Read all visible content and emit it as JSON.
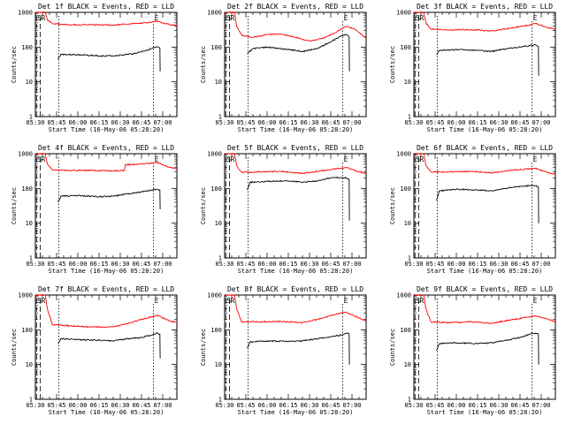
{
  "shared": {
    "ylabel": "Counts/sec",
    "xlabel": "Start Time (16-May-06 05:28:20)",
    "x_tick_labels": [
      "05:30",
      "05:45",
      "06:00",
      "06:15",
      "06:30",
      "06:45",
      "07:00"
    ],
    "y_tick_labels": [
      "1",
      "10",
      "100",
      "1000"
    ],
    "marker_s_label": "S",
    "marker_e_label": "E",
    "marker_r_label": "R",
    "series_colors": {
      "events": "#000000",
      "lld": "#ff0000"
    }
  },
  "chart_data": [
    {
      "type": "line",
      "title": "Det 1f BLACK = Events, RED = LLD",
      "x_unit": "minutes after 05:30",
      "xlim": [
        0,
        100
      ],
      "ylim": [
        1,
        1000
      ],
      "yscale": "log",
      "markers": {
        "S": [
          0.8,
          3.4,
          16.5
        ],
        "E": [
          83.5
        ]
      },
      "series": [
        {
          "name": "Events",
          "points": [
            [
              16,
              45
            ],
            [
              18,
              62
            ],
            [
              30,
              60
            ],
            [
              45,
              56
            ],
            [
              55,
              56
            ],
            [
              70,
              65
            ],
            [
              80,
              85
            ],
            [
              86,
              100
            ],
            [
              88,
              95
            ],
            [
              88.2,
              20
            ]
          ]
        },
        {
          "name": "LLD",
          "points": [
            [
              0,
              950
            ],
            [
              3,
              1000
            ],
            [
              7,
              1000
            ],
            [
              8.5,
              600
            ],
            [
              12,
              470
            ],
            [
              25,
              440
            ],
            [
              40,
              440
            ],
            [
              55,
              430
            ],
            [
              70,
              470
            ],
            [
              82,
              520
            ],
            [
              86,
              560
            ],
            [
              95,
              440
            ],
            [
              100,
              420
            ]
          ]
        }
      ]
    },
    {
      "type": "line",
      "title": "Det 2f BLACK = Events, RED = LLD",
      "x_unit": "minutes after 05:30",
      "xlim": [
        0,
        100
      ],
      "ylim": [
        1,
        1000
      ],
      "yscale": "log",
      "markers": {
        "S": [
          0.8,
          3.4,
          16.5
        ],
        "E": [
          83.5
        ]
      },
      "series": [
        {
          "name": "Events",
          "points": [
            [
              16,
              65
            ],
            [
              20,
              90
            ],
            [
              30,
              100
            ],
            [
              45,
              85
            ],
            [
              55,
              75
            ],
            [
              65,
              90
            ],
            [
              75,
              140
            ],
            [
              82,
              210
            ],
            [
              86,
              230
            ],
            [
              88,
              200
            ],
            [
              88.2,
              20
            ]
          ]
        },
        {
          "name": "LLD",
          "points": [
            [
              0,
              950
            ],
            [
              3,
              1000
            ],
            [
              7,
              1000
            ],
            [
              8.5,
              400
            ],
            [
              12,
              220
            ],
            [
              20,
              190
            ],
            [
              30,
              230
            ],
            [
              40,
              240
            ],
            [
              50,
              190
            ],
            [
              60,
              150
            ],
            [
              70,
              180
            ],
            [
              80,
              290
            ],
            [
              86,
              400
            ],
            [
              92,
              330
            ],
            [
              100,
              180
            ]
          ]
        }
      ]
    },
    {
      "type": "line",
      "title": "Det 3f BLACK = Events, RED = LLD",
      "x_unit": "minutes after 05:30",
      "xlim": [
        0,
        100
      ],
      "ylim": [
        1,
        1000
      ],
      "yscale": "log",
      "markers": {
        "S": [
          0.8,
          3.4,
          16.5
        ],
        "E": [
          83.5
        ]
      },
      "series": [
        {
          "name": "Events",
          "points": [
            [
              16,
              60
            ],
            [
              18,
              80
            ],
            [
              30,
              85
            ],
            [
              45,
              80
            ],
            [
              55,
              75
            ],
            [
              65,
              90
            ],
            [
              75,
              100
            ],
            [
              82,
              110
            ],
            [
              86,
              115
            ],
            [
              88,
              105
            ],
            [
              88.2,
              15
            ]
          ]
        },
        {
          "name": "LLD",
          "points": [
            [
              0,
              950
            ],
            [
              3,
              1000
            ],
            [
              7,
              1000
            ],
            [
              8.5,
              500
            ],
            [
              12,
              330
            ],
            [
              25,
              310
            ],
            [
              40,
              320
            ],
            [
              55,
              290
            ],
            [
              68,
              350
            ],
            [
              80,
              420
            ],
            [
              86,
              480
            ],
            [
              95,
              360
            ],
            [
              100,
              330
            ]
          ]
        }
      ]
    },
    {
      "type": "line",
      "title": "Det 4f BLACK = Events, RED = LLD",
      "x_unit": "minutes after 05:30",
      "xlim": [
        0,
        100
      ],
      "ylim": [
        1,
        1000
      ],
      "yscale": "log",
      "markers": {
        "S": [
          0.8,
          3.4,
          16.5
        ],
        "E": [
          83.5
        ]
      },
      "series": [
        {
          "name": "Events",
          "points": [
            [
              16,
              40
            ],
            [
              18,
              60
            ],
            [
              30,
              62
            ],
            [
              45,
              58
            ],
            [
              55,
              60
            ],
            [
              65,
              70
            ],
            [
              72,
              75
            ],
            [
              78,
              85
            ],
            [
              86,
              95
            ],
            [
              88,
              90
            ],
            [
              88.2,
              25
            ]
          ]
        },
        {
          "name": "LLD",
          "points": [
            [
              0,
              950
            ],
            [
              3,
              1000
            ],
            [
              7,
              1000
            ],
            [
              8.5,
              500
            ],
            [
              12,
              340
            ],
            [
              25,
              330
            ],
            [
              40,
              330
            ],
            [
              55,
              320
            ],
            [
              63,
              330
            ],
            [
              63.5,
              480
            ],
            [
              75,
              500
            ],
            [
              86,
              560
            ],
            [
              95,
              400
            ],
            [
              100,
              370
            ]
          ]
        }
      ]
    },
    {
      "type": "line",
      "title": "Det 5f BLACK = Events, RED = LLD",
      "x_unit": "minutes after 05:30",
      "xlim": [
        0,
        100
      ],
      "ylim": [
        1,
        1000
      ],
      "yscale": "log",
      "markers": {
        "S": [
          0.8,
          3.4,
          16.5
        ],
        "E": [
          83.5
        ]
      },
      "series": [
        {
          "name": "Events",
          "points": [
            [
              16,
              90
            ],
            [
              18,
              150
            ],
            [
              30,
              160
            ],
            [
              45,
              165
            ],
            [
              55,
              150
            ],
            [
              65,
              165
            ],
            [
              75,
              200
            ],
            [
              82,
              210
            ],
            [
              86,
              200
            ],
            [
              88,
              180
            ],
            [
              88.2,
              12
            ]
          ]
        },
        {
          "name": "LLD",
          "points": [
            [
              0,
              950
            ],
            [
              3,
              1000
            ],
            [
              7,
              1000
            ],
            [
              8.5,
              450
            ],
            [
              12,
              290
            ],
            [
              25,
              300
            ],
            [
              40,
              310
            ],
            [
              55,
              270
            ],
            [
              68,
              320
            ],
            [
              80,
              370
            ],
            [
              86,
              400
            ],
            [
              95,
              300
            ],
            [
              100,
              270
            ]
          ]
        }
      ]
    },
    {
      "type": "line",
      "title": "Det 6f BLACK = Events, RED = LLD",
      "x_unit": "minutes after 05:30",
      "xlim": [
        0,
        100
      ],
      "ylim": [
        1,
        1000
      ],
      "yscale": "log",
      "markers": {
        "S": [
          0.8,
          3.4,
          16.5
        ],
        "E": [
          83.5
        ]
      },
      "series": [
        {
          "name": "Events",
          "points": [
            [
              16,
              45
            ],
            [
              18,
              85
            ],
            [
              30,
              95
            ],
            [
              45,
              90
            ],
            [
              55,
              85
            ],
            [
              65,
              100
            ],
            [
              75,
              115
            ],
            [
              82,
              120
            ],
            [
              86,
              120
            ],
            [
              88,
              110
            ],
            [
              88.2,
              10
            ]
          ]
        },
        {
          "name": "LLD",
          "points": [
            [
              0,
              950
            ],
            [
              3,
              1000
            ],
            [
              7,
              1000
            ],
            [
              8.5,
              450
            ],
            [
              12,
              300
            ],
            [
              25,
              300
            ],
            [
              40,
              310
            ],
            [
              55,
              280
            ],
            [
              68,
              330
            ],
            [
              80,
              360
            ],
            [
              86,
              380
            ],
            [
              95,
              280
            ],
            [
              100,
              260
            ]
          ]
        }
      ]
    },
    {
      "type": "line",
      "title": "Det 7f BLACK = Events, RED = LLD",
      "x_unit": "minutes after 05:30",
      "xlim": [
        0,
        100
      ],
      "ylim": [
        1,
        1000
      ],
      "yscale": "log",
      "markers": {
        "S": [
          0.8,
          3.4,
          16.5
        ],
        "E": [
          83.5
        ]
      },
      "series": [
        {
          "name": "Events",
          "points": [
            [
              16,
              40
            ],
            [
              18,
              55
            ],
            [
              30,
              52
            ],
            [
              45,
              50
            ],
            [
              55,
              48
            ],
            [
              65,
              55
            ],
            [
              75,
              60
            ],
            [
              82,
              70
            ],
            [
              86,
              80
            ],
            [
              88,
              75
            ],
            [
              88.2,
              15
            ]
          ]
        },
        {
          "name": "LLD",
          "points": [
            [
              0,
              950
            ],
            [
              3,
              1000
            ],
            [
              7,
              1000
            ],
            [
              8.5,
              400
            ],
            [
              12,
              140
            ],
            [
              25,
              130
            ],
            [
              40,
              120
            ],
            [
              55,
              120
            ],
            [
              65,
              150
            ],
            [
              75,
              200
            ],
            [
              86,
              260
            ],
            [
              95,
              180
            ],
            [
              100,
              160
            ]
          ]
        }
      ]
    },
    {
      "type": "line",
      "title": "Det 8f BLACK = Events, RED = LLD",
      "x_unit": "minutes after 05:30",
      "xlim": [
        0,
        100
      ],
      "ylim": [
        1,
        1000
      ],
      "yscale": "log",
      "markers": {
        "S": [
          0.8,
          3.4,
          16.5
        ],
        "E": [
          83.5
        ]
      },
      "series": [
        {
          "name": "Events",
          "points": [
            [
              16,
              30
            ],
            [
              18,
              45
            ],
            [
              30,
              48
            ],
            [
              45,
              46
            ],
            [
              55,
              48
            ],
            [
              65,
              55
            ],
            [
              75,
              62
            ],
            [
              82,
              70
            ],
            [
              86,
              80
            ],
            [
              88,
              75
            ],
            [
              88.2,
              10
            ]
          ]
        },
        {
          "name": "LLD",
          "points": [
            [
              0,
              950
            ],
            [
              3,
              1000
            ],
            [
              7,
              1000
            ],
            [
              8.5,
              400
            ],
            [
              12,
              170
            ],
            [
              25,
              170
            ],
            [
              40,
              175
            ],
            [
              55,
              160
            ],
            [
              68,
              210
            ],
            [
              80,
              290
            ],
            [
              86,
              320
            ],
            [
              95,
              220
            ],
            [
              100,
              180
            ]
          ]
        }
      ]
    },
    {
      "type": "line",
      "title": "Det 9f BLACK = Events, RED = LLD",
      "x_unit": "minutes after 05:30",
      "xlim": [
        0,
        100
      ],
      "ylim": [
        1,
        1000
      ],
      "yscale": "log",
      "markers": {
        "S": [
          0.8,
          3.4,
          16.5
        ],
        "E": [
          83.5
        ]
      },
      "series": [
        {
          "name": "Events",
          "points": [
            [
              16,
              25
            ],
            [
              18,
              40
            ],
            [
              30,
              42
            ],
            [
              45,
              40
            ],
            [
              55,
              42
            ],
            [
              65,
              50
            ],
            [
              75,
              60
            ],
            [
              82,
              75
            ],
            [
              86,
              80
            ],
            [
              88,
              75
            ],
            [
              88.2,
              10
            ]
          ]
        },
        {
          "name": "LLD",
          "points": [
            [
              0,
              950
            ],
            [
              3,
              1000
            ],
            [
              7,
              1000
            ],
            [
              8.5,
              400
            ],
            [
              12,
              170
            ],
            [
              25,
              160
            ],
            [
              40,
              170
            ],
            [
              55,
              155
            ],
            [
              68,
              190
            ],
            [
              80,
              230
            ],
            [
              86,
              250
            ],
            [
              95,
              200
            ],
            [
              100,
              170
            ]
          ]
        }
      ]
    }
  ]
}
